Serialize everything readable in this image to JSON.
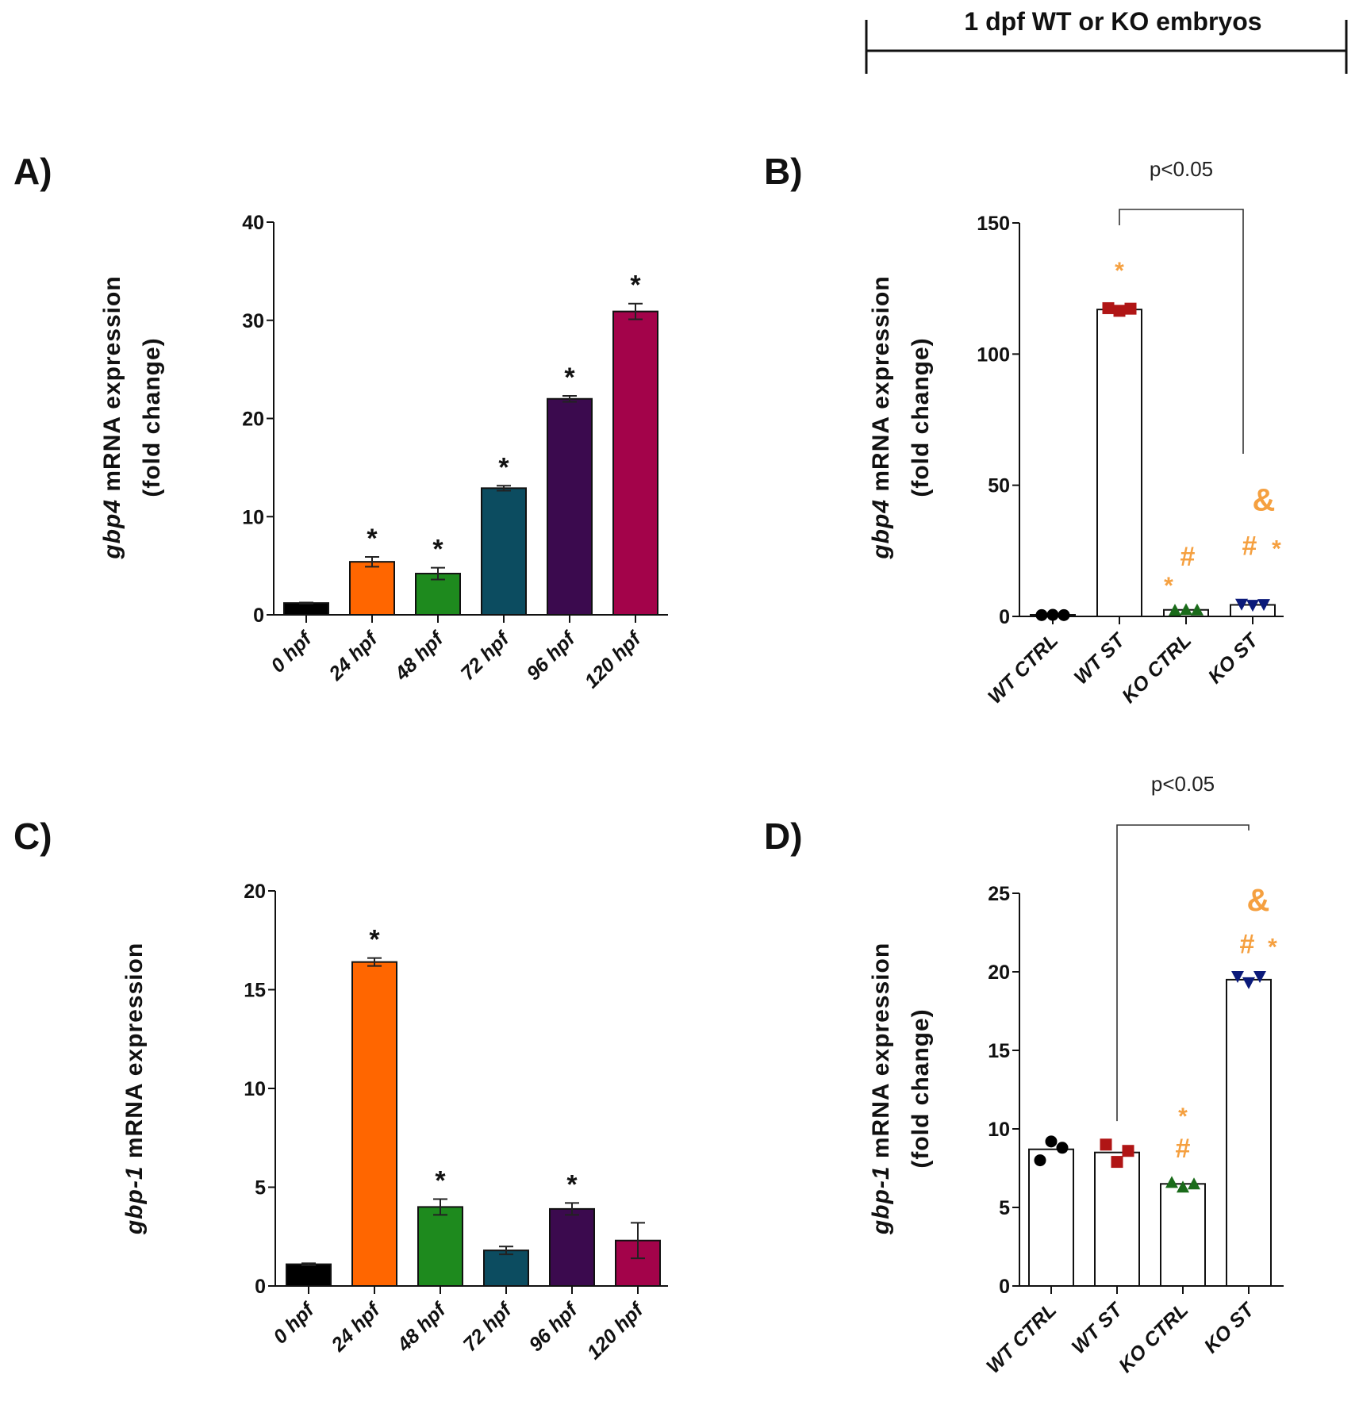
{
  "header": {
    "title": "1 dpf WT or KO embryos"
  },
  "chart_data": [
    {
      "panel": "A)",
      "type": "bar",
      "ylabel_gene": "gbp4",
      "ylabel_rest": " mRNA expression",
      "ylabel_line2": "(fold change)",
      "categories": [
        "0 hpf",
        "24 hpf",
        "48 hpf",
        "72 hpf",
        "96 hpf",
        "120 hpf"
      ],
      "values": [
        1.2,
        5.4,
        4.2,
        12.9,
        22.0,
        30.9
      ],
      "errors": [
        0.05,
        0.5,
        0.6,
        0.25,
        0.3,
        0.8
      ],
      "colors": [
        "#000000",
        "#ff6600",
        "#1e8a1e",
        "#0c4c60",
        "#3b0a4e",
        "#a3034a"
      ],
      "significance": [
        "",
        "*",
        "*",
        "*",
        "*",
        "*"
      ],
      "yticks": [
        0,
        10,
        20,
        30,
        40
      ],
      "ylim": [
        0,
        40
      ]
    },
    {
      "panel": "B)",
      "type": "bar+scatter",
      "ylabel_gene": "gbp4",
      "ylabel_rest": " mRNA expression",
      "ylabel_line2": "(fold change)",
      "categories": [
        "WT CTRL",
        "WT ST",
        "KO CTRL",
        "KO ST"
      ],
      "values": [
        0.6,
        117,
        2.5,
        4.4
      ],
      "points": [
        [
          0.5,
          0.6,
          0.5
        ],
        [
          117.5,
          116.5,
          117.3
        ],
        [
          2.4,
          2.6,
          2.5
        ],
        [
          4.6,
          4.2,
          4.5
        ]
      ],
      "markers": [
        "circle",
        "square",
        "triangle-up",
        "triangle-down"
      ],
      "marker_colors": [
        "#000000",
        "#b01515",
        "#1a6b1a",
        "#0b1a7a"
      ],
      "annotations": [
        {
          "cat": 1,
          "text": "*",
          "y": 133,
          "dx": 0
        },
        {
          "cat": 2,
          "text": "*",
          "y": 13,
          "dx": -22
        },
        {
          "cat": 2,
          "text": "#",
          "y": 23,
          "dx": 2
        },
        {
          "cat": 3,
          "text": "&",
          "y": 44,
          "dx": 14
        },
        {
          "cat": 3,
          "text": "#",
          "y": 27,
          "dx": -4
        },
        {
          "cat": 3,
          "text": "*",
          "y": 27,
          "dx": 30
        }
      ],
      "annotation_color": "#f5a040",
      "comparison": {
        "from": 1,
        "to": 3,
        "label": "p<0.05",
        "drop_to": 62
      },
      "yticks": [
        0,
        50,
        100,
        150
      ],
      "ylim": [
        0,
        150
      ]
    },
    {
      "panel": "C)",
      "type": "bar",
      "ylabel_gene": "gbp-1",
      "ylabel_rest": " mRNA expression",
      "ylabel_line2": "",
      "categories": [
        "0 hpf",
        "24 hpf",
        "48 hpf",
        "72 hpf",
        "96 hpf",
        "120 hpf"
      ],
      "values": [
        1.1,
        16.4,
        4.0,
        1.8,
        3.9,
        2.3
      ],
      "errors": [
        0.05,
        0.2,
        0.4,
        0.2,
        0.3,
        0.9
      ],
      "colors": [
        "#000000",
        "#ff6600",
        "#1e8a1e",
        "#0c4c60",
        "#3b0a4e",
        "#a3034a"
      ],
      "significance": [
        "",
        "*",
        "*",
        "",
        "*",
        ""
      ],
      "yticks": [
        0,
        5,
        10,
        15,
        20
      ],
      "ylim": [
        0,
        20
      ]
    },
    {
      "panel": "D)",
      "type": "bar+scatter",
      "ylabel_gene": "gbp-1",
      "ylabel_rest": " mRNA expression",
      "ylabel_line2": "(fold change)",
      "categories": [
        "WT CTRL",
        "WT ST",
        "KO CTRL",
        "KO ST"
      ],
      "values": [
        8.7,
        8.5,
        6.5,
        19.5
      ],
      "points": [
        [
          8.0,
          9.2,
          8.8
        ],
        [
          9.0,
          7.9,
          8.6
        ],
        [
          6.6,
          6.3,
          6.5
        ],
        [
          19.7,
          19.3,
          19.7
        ]
      ],
      "markers": [
        "circle",
        "square",
        "triangle-up",
        "triangle-down"
      ],
      "marker_colors": [
        "#000000",
        "#b01515",
        "#1a6b1a",
        "#0b1a7a"
      ],
      "annotations": [
        {
          "cat": 2,
          "text": "*",
          "y": 11,
          "dx": 0
        },
        {
          "cat": 2,
          "text": "#",
          "y": 8.8,
          "dx": 0
        },
        {
          "cat": 3,
          "text": "&",
          "y": 24.5,
          "dx": 12
        },
        {
          "cat": 3,
          "text": "#",
          "y": 21.8,
          "dx": -2
        },
        {
          "cat": 3,
          "text": "*",
          "y": 21.8,
          "dx": 30
        }
      ],
      "annotation_color": "#f5a040",
      "comparison": {
        "from": 1,
        "to": 3,
        "label": "p<0.05",
        "drop_to": 10.5,
        "drop_to_right": 29
      },
      "yticks": [
        0,
        5,
        10,
        15,
        20,
        25
      ],
      "ylim": [
        0,
        25
      ]
    }
  ]
}
